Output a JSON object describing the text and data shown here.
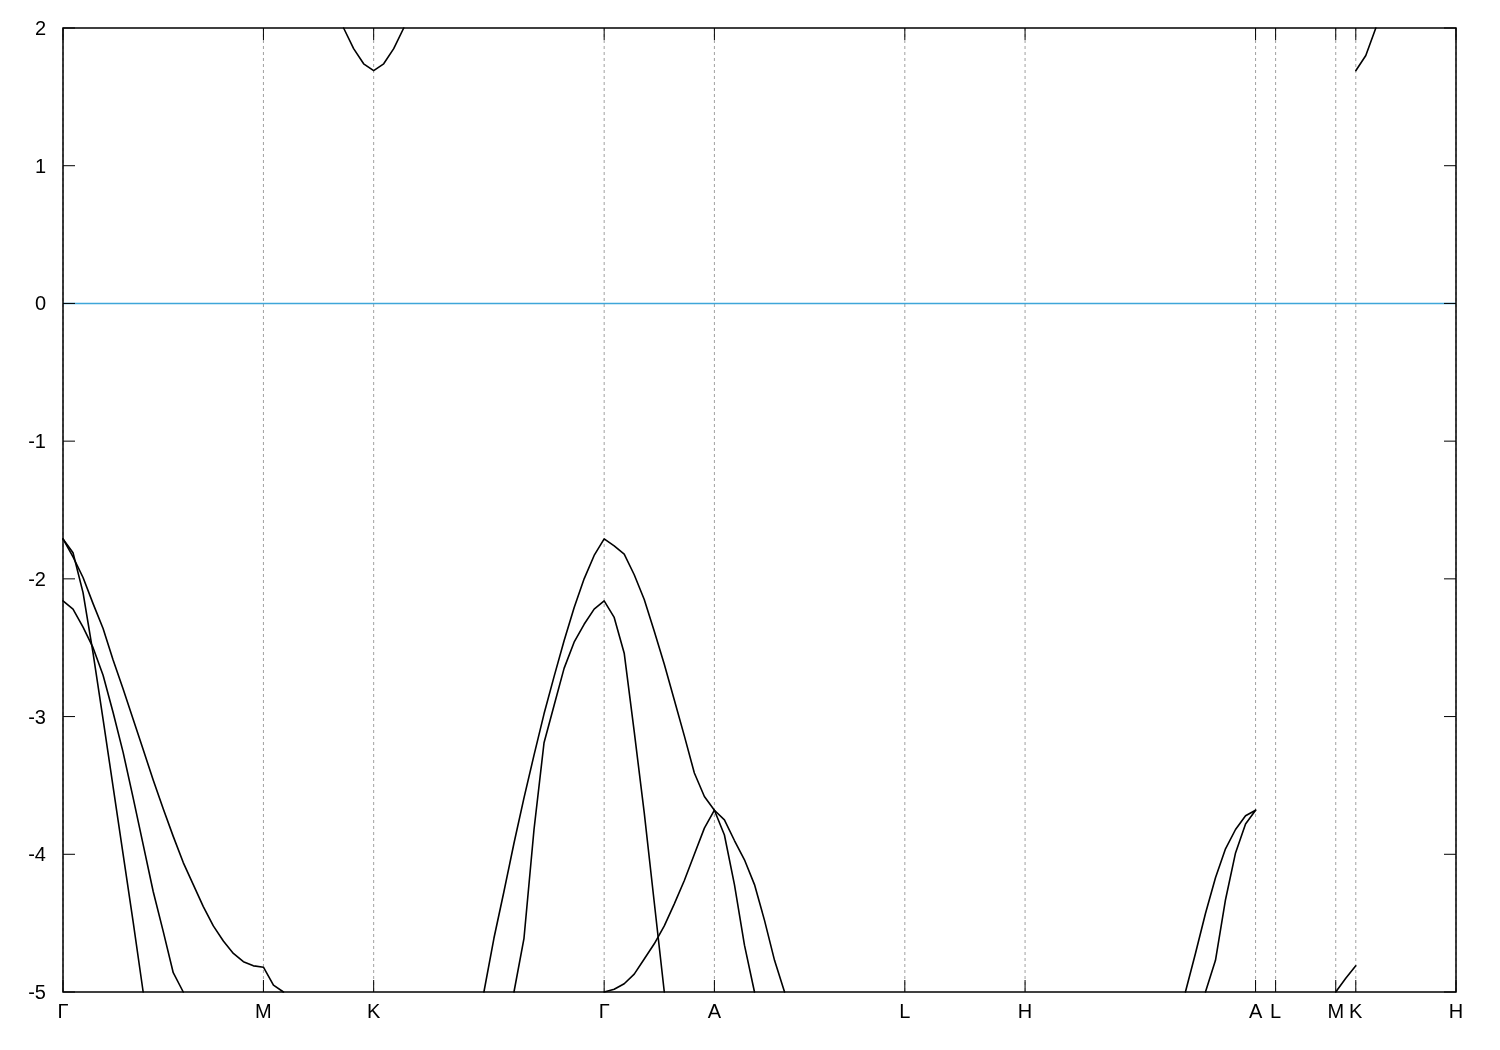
{
  "chart_data": {
    "type": "line",
    "ylim": [
      -5,
      2
    ],
    "categories": [
      "Γ",
      null,
      null,
      null,
      null,
      null,
      null,
      null,
      null,
      null,
      null,
      null,
      null,
      null,
      null,
      null,
      null,
      null,
      null,
      null,
      "M",
      null,
      null,
      null,
      null,
      null,
      null,
      null,
      null,
      null,
      null,
      "K",
      null,
      null,
      null,
      null,
      null,
      null,
      null,
      null,
      null,
      null,
      null,
      null,
      null,
      null,
      null,
      null,
      null,
      null,
      null,
      null,
      null,
      null,
      "Γ",
      null,
      null,
      null,
      null,
      null,
      null,
      null,
      null,
      null,
      null,
      "A",
      null,
      null,
      null,
      null,
      null,
      null,
      null,
      null,
      null,
      null,
      null,
      null,
      null,
      null,
      null,
      null,
      null,
      null,
      "L",
      null,
      null,
      null,
      null,
      null,
      null,
      null,
      null,
      null,
      null,
      null,
      "H",
      null,
      null,
      null,
      null,
      null,
      null,
      null,
      null,
      null,
      null,
      null,
      null,
      null,
      null,
      null,
      null,
      null,
      null,
      null,
      null,
      null,
      null,
      "A",
      null,
      "L",
      null,
      null,
      null,
      null,
      null,
      "M",
      null,
      "K",
      null,
      null,
      null,
      null,
      null,
      null,
      null,
      null,
      null,
      "H"
    ],
    "yticks": [
      -5,
      -4,
      -3,
      -2,
      -1,
      0,
      1,
      2
    ],
    "grid": "x",
    "line_style": "solid",
    "ref_lines": [
      {
        "axis": "y",
        "value": 0,
        "color": "#3ea6d9"
      }
    ],
    "series": [
      {
        "color": "#000000",
        "values": [
          -1.71,
          -1.84,
          -1.99,
          -2.18,
          -2.36,
          -2.59,
          -2.8,
          -3.02,
          -3.24,
          -3.46,
          -3.67,
          -3.87,
          -4.06,
          -4.22,
          -4.38,
          -4.52,
          -4.63,
          -4.72,
          -4.78,
          -4.81,
          -4.82,
          -4.95,
          -5,
          null,
          null,
          null,
          null,
          null,
          null,
          null,
          null,
          null,
          null,
          null,
          null,
          null,
          null,
          null,
          null,
          null,
          null,
          null,
          -5,
          -4.61,
          -4.27,
          -3.92,
          -3.59,
          -3.28,
          -2.98,
          -2.71,
          -2.45,
          -2.21,
          -2,
          -1.83,
          -1.71,
          -1.76,
          -1.82,
          -1.97,
          -2.15,
          -2.38,
          -2.62,
          -2.88,
          -3.14,
          -3.41,
          -3.58,
          -3.68,
          -3.86,
          -4.22,
          -4.66,
          -5,
          null,
          null,
          null,
          null,
          null,
          null,
          null,
          null,
          null,
          null,
          null,
          null,
          null,
          null,
          null,
          null,
          null,
          null,
          null,
          null,
          null,
          null,
          null,
          null,
          null,
          null,
          null,
          null,
          null,
          null,
          null,
          null,
          null,
          null,
          null,
          null,
          null,
          null,
          null,
          null,
          null,
          null,
          -5,
          -4.72,
          -4.43,
          -4.17,
          -3.96,
          -3.82,
          -3.72,
          -3.68,
          null,
          null,
          null,
          null,
          null,
          null,
          null,
          null,
          null,
          null,
          null,
          null,
          null,
          null,
          null,
          null,
          null,
          null,
          null,
          null
        ]
      },
      {
        "color": "#000000",
        "values": [
          -1.71,
          -1.81,
          -2.1,
          -2.54,
          -3.02,
          -3.51,
          -4,
          -4.49,
          -5,
          null,
          null,
          null,
          null,
          null,
          null,
          null,
          null,
          null,
          null,
          null,
          null,
          null,
          null,
          null,
          null,
          null,
          null,
          null,
          null,
          null,
          null,
          null,
          null,
          null,
          null,
          null,
          null,
          null,
          null,
          null,
          null,
          null,
          null,
          null,
          null,
          null,
          null,
          null,
          null,
          null,
          null,
          null,
          null,
          null,
          null,
          null,
          null,
          null,
          null,
          null,
          null,
          null,
          null,
          null,
          null,
          -3.68,
          -3.75,
          -3.9,
          -4.04,
          -4.22,
          -4.48,
          -4.77,
          -5,
          null,
          null,
          null,
          null,
          null,
          null,
          null,
          null,
          null,
          null,
          null,
          null,
          null,
          null,
          null,
          null,
          null,
          null,
          null,
          null,
          null,
          null,
          null,
          null,
          null,
          null,
          null,
          null,
          null,
          null,
          null,
          null,
          null,
          null,
          null,
          null,
          null,
          null,
          null,
          null,
          null,
          -5,
          -4.77,
          -4.33,
          -3.99,
          -3.78,
          -3.68,
          null,
          null,
          null,
          null,
          null,
          null,
          null,
          null,
          null,
          null,
          null,
          null,
          null,
          null,
          null,
          null,
          null,
          null,
          null,
          null
        ]
      },
      {
        "color": "#000000",
        "values": [
          -2.16,
          -2.22,
          -2.35,
          -2.5,
          -2.7,
          -2.97,
          -3.26,
          -3.59,
          -3.93,
          -4.27,
          -4.56,
          -4.86,
          -5,
          null,
          null,
          null,
          null,
          null,
          null,
          null,
          null,
          null,
          null,
          null,
          null,
          null,
          null,
          null,
          null,
          null,
          null,
          null,
          null,
          null,
          null,
          null,
          null,
          null,
          null,
          null,
          null,
          null,
          null,
          null,
          null,
          -5,
          -4.61,
          -3.82,
          -3.19,
          -2.92,
          -2.65,
          -2.46,
          -2.33,
          -2.22,
          -2.16,
          -2.28,
          -2.54,
          -3.11,
          -3.7,
          -4.35,
          -5,
          null,
          null,
          null,
          null,
          null,
          null,
          null,
          null,
          null,
          null,
          null,
          null,
          null,
          null,
          null,
          null,
          null,
          null,
          null,
          null,
          null,
          null,
          null,
          null,
          null,
          null,
          null,
          null,
          null,
          null,
          null,
          null,
          null,
          null,
          null,
          null,
          null,
          null,
          null,
          null,
          null,
          null,
          null,
          null,
          null,
          null,
          null,
          null,
          null,
          null,
          null,
          null,
          null,
          null,
          null,
          null,
          null,
          null,
          null,
          null,
          null,
          null,
          null,
          null,
          null,
          null,
          -5,
          -4.9,
          -4.81,
          null,
          null,
          null,
          null,
          null,
          null,
          null,
          null,
          null,
          null
        ]
      },
      {
        "color": "#000000",
        "values": [
          null,
          null,
          null,
          null,
          null,
          null,
          null,
          null,
          null,
          null,
          null,
          null,
          null,
          null,
          null,
          null,
          null,
          null,
          null,
          null,
          null,
          null,
          null,
          null,
          null,
          null,
          null,
          null,
          2,
          1.85,
          1.74,
          1.69,
          1.74,
          1.85,
          2,
          null,
          null,
          null,
          null,
          null,
          null,
          null,
          null,
          null,
          null,
          null,
          null,
          null,
          null,
          null,
          null,
          null,
          null,
          null,
          -5,
          -4.98,
          -4.94,
          -4.87,
          -4.76,
          -4.65,
          -4.52,
          -4.36,
          -4.19,
          -4,
          -3.81,
          -3.68,
          null,
          null,
          null,
          null,
          null,
          null,
          null,
          null,
          null,
          null,
          null,
          null,
          null,
          null,
          null,
          null,
          null,
          null,
          null,
          null,
          null,
          null,
          null,
          null,
          null,
          null,
          null,
          null,
          null,
          null,
          null,
          null,
          null,
          null,
          null,
          null,
          null,
          null,
          null,
          null,
          null,
          null,
          null,
          null,
          null,
          null,
          null,
          null,
          null,
          null,
          null,
          null,
          null,
          null,
          null,
          null,
          null,
          null,
          null,
          null,
          null,
          null,
          null,
          1.69,
          1.8,
          2,
          null,
          null,
          null,
          null,
          null,
          null,
          null,
          null
        ]
      }
    ]
  }
}
